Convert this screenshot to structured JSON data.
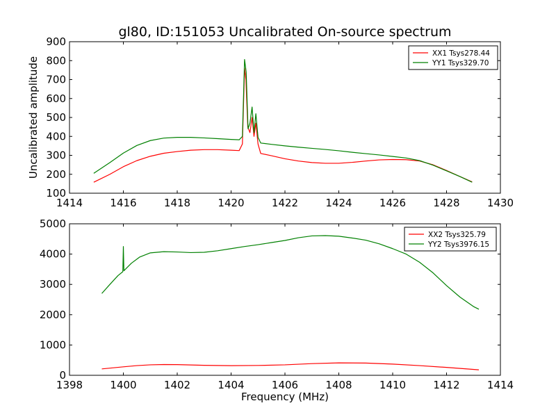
{
  "chart_data": [
    {
      "type": "line",
      "title": "gl80, ID:151053 Uncalibrated On-source spectrum",
      "xlabel": "",
      "ylabel": "Uncalibrated amplitude",
      "xlim": [
        1414,
        1430
      ],
      "ylim": [
        100,
        900
      ],
      "xticks": [
        1414,
        1416,
        1418,
        1420,
        1422,
        1424,
        1426,
        1428,
        1430
      ],
      "yticks": [
        100,
        200,
        300,
        400,
        500,
        600,
        700,
        800,
        900
      ],
      "legend_position": "top-right",
      "series": [
        {
          "name": "XX1 Tsys278.44",
          "color": "#ff0000",
          "x": [
            1414.9,
            1415.5,
            1416.0,
            1416.5,
            1417.0,
            1417.5,
            1418.0,
            1418.5,
            1419.0,
            1419.5,
            1420.0,
            1420.3,
            1420.42,
            1420.5,
            1420.55,
            1420.62,
            1420.7,
            1420.78,
            1420.85,
            1420.92,
            1421.0,
            1421.1,
            1421.5,
            1422.0,
            1422.5,
            1423.0,
            1423.5,
            1424.0,
            1424.5,
            1425.0,
            1425.5,
            1426.0,
            1426.5,
            1427.0,
            1427.5,
            1428.0,
            1428.5,
            1428.95
          ],
          "y": [
            158,
            200,
            240,
            272,
            295,
            311,
            320,
            327,
            330,
            330,
            327,
            325,
            360,
            760,
            700,
            450,
            420,
            500,
            400,
            470,
            360,
            310,
            298,
            282,
            270,
            262,
            258,
            258,
            263,
            270,
            276,
            278,
            277,
            270,
            250,
            220,
            188,
            160
          ]
        },
        {
          "name": "YY1 Tsys329.70",
          "color": "#008000",
          "x": [
            1414.9,
            1415.5,
            1416.0,
            1416.5,
            1417.0,
            1417.5,
            1418.0,
            1418.5,
            1419.0,
            1419.5,
            1420.0,
            1420.3,
            1420.42,
            1420.5,
            1420.56,
            1420.63,
            1420.7,
            1420.78,
            1420.85,
            1420.92,
            1421.0,
            1421.1,
            1421.5,
            1422.0,
            1422.5,
            1423.0,
            1423.5,
            1424.0,
            1424.5,
            1425.0,
            1425.5,
            1426.0,
            1426.5,
            1427.0,
            1427.5,
            1428.0,
            1428.5,
            1428.95
          ],
          "y": [
            205,
            262,
            312,
            352,
            378,
            391,
            395,
            395,
            392,
            388,
            384,
            382,
            400,
            806,
            740,
            440,
            470,
            555,
            420,
            520,
            395,
            365,
            358,
            350,
            343,
            337,
            331,
            324,
            316,
            309,
            302,
            294,
            286,
            272,
            248,
            218,
            188,
            158
          ]
        }
      ]
    },
    {
      "type": "line",
      "title": "",
      "xlabel": "Frequency (MHz)",
      "ylabel": "",
      "xlim": [
        1398,
        1414
      ],
      "ylim": [
        0,
        5000
      ],
      "xticks": [
        1398,
        1400,
        1402,
        1404,
        1406,
        1408,
        1410,
        1412,
        1414
      ],
      "yticks": [
        0,
        1000,
        2000,
        3000,
        4000,
        5000
      ],
      "legend_position": "top-right",
      "series": [
        {
          "name": "XX2 Tsys325.79",
          "color": "#ff0000",
          "x": [
            1399.2,
            1400.0,
            1400.5,
            1401.0,
            1401.5,
            1402.0,
            1403.0,
            1404.0,
            1405.0,
            1406.0,
            1407.0,
            1408.0,
            1409.0,
            1410.0,
            1411.0,
            1412.0,
            1413.2
          ],
          "y": [
            210,
            280,
            320,
            345,
            355,
            352,
            330,
            318,
            325,
            345,
            385,
            410,
            405,
            370,
            320,
            260,
            180
          ]
        },
        {
          "name": "YY2 Tsys3976.15",
          "color": "#008000",
          "x": [
            1399.2,
            1399.5,
            1399.8,
            1399.98,
            1400.0,
            1400.02,
            1400.3,
            1400.6,
            1401.0,
            1401.5,
            1402.0,
            1402.5,
            1403.0,
            1403.5,
            1404.0,
            1404.5,
            1405.0,
            1405.5,
            1406.0,
            1406.5,
            1407.0,
            1407.5,
            1408.0,
            1408.5,
            1409.0,
            1409.5,
            1410.0,
            1410.5,
            1411.0,
            1411.5,
            1412.0,
            1412.5,
            1413.0,
            1413.2
          ],
          "y": [
            2700,
            3000,
            3290,
            3420,
            4250,
            3450,
            3700,
            3900,
            4040,
            4080,
            4070,
            4050,
            4060,
            4110,
            4180,
            4250,
            4310,
            4380,
            4450,
            4540,
            4600,
            4610,
            4590,
            4530,
            4460,
            4340,
            4180,
            4000,
            3730,
            3380,
            2960,
            2580,
            2270,
            2180
          ]
        }
      ]
    }
  ]
}
